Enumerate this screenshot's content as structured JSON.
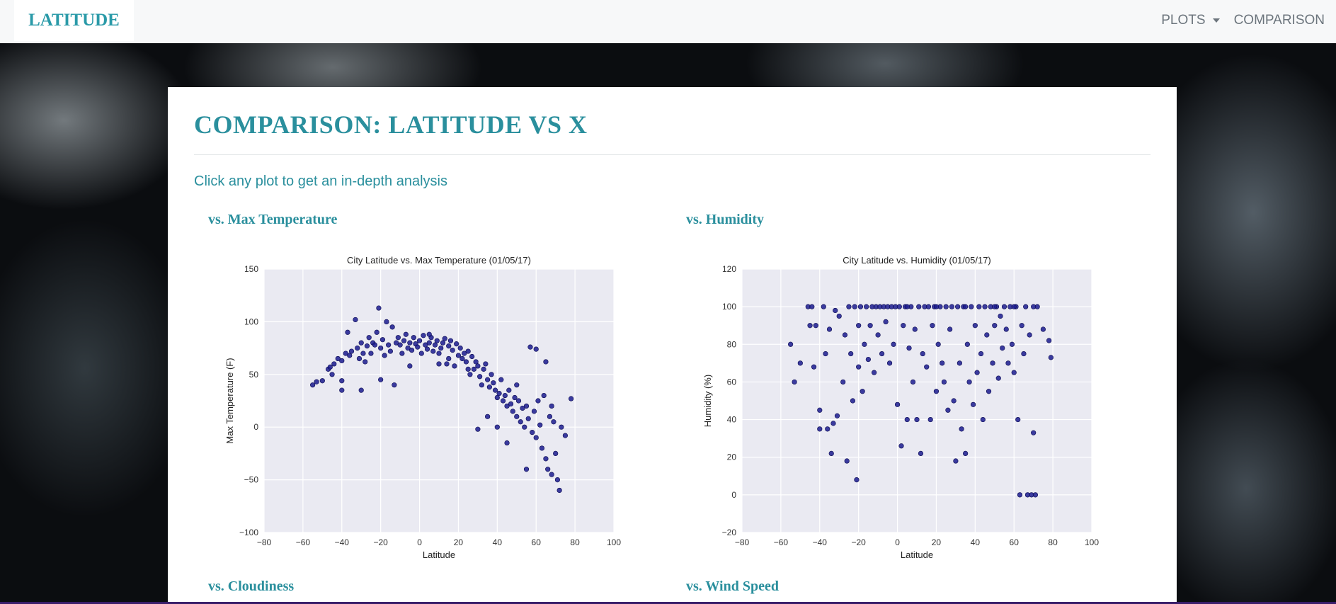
{
  "navbar": {
    "brand": "LATITUDE",
    "plots_label": "PLOTS",
    "comparison_label": "COMPARISON"
  },
  "main": {
    "title": "COMPARISON: LATITUDE VS X",
    "subtitle": "Click any plot to get an in-depth analysis"
  },
  "plots": [
    {
      "title": "vs. Max Temperature"
    },
    {
      "title": "vs. Humidity"
    },
    {
      "title": "vs. Cloudiness"
    },
    {
      "title": "vs. Wind Speed"
    }
  ],
  "colors": {
    "accent": "#2a8f9d",
    "point": "#1b1b8f",
    "plot_bg": "#eaeaf2"
  },
  "chart_data": [
    {
      "type": "scatter",
      "title": "City Latitude vs. Max Temperature (01/05/17)",
      "xlabel": "Latitude",
      "ylabel": "Max Temperature (F)",
      "xlim": [
        -80,
        100
      ],
      "ylim": [
        -100,
        150
      ],
      "xticks": [
        -80,
        -60,
        -40,
        -20,
        0,
        20,
        40,
        60,
        80,
        100
      ],
      "yticks": [
        -100,
        -50,
        0,
        50,
        100,
        150
      ],
      "grid": true,
      "points": [
        [
          -55,
          40
        ],
        [
          -53,
          43
        ],
        [
          -50,
          44
        ],
        [
          -47,
          55
        ],
        [
          -46,
          57
        ],
        [
          -45,
          50
        ],
        [
          -44,
          60
        ],
        [
          -42,
          65
        ],
        [
          -40,
          63
        ],
        [
          -40,
          44
        ],
        [
          -38,
          70
        ],
        [
          -37,
          90
        ],
        [
          -36,
          68
        ],
        [
          -35,
          72
        ],
        [
          -33,
          102
        ],
        [
          -32,
          75
        ],
        [
          -31,
          65
        ],
        [
          -30,
          80
        ],
        [
          -29,
          70
        ],
        [
          -28,
          62
        ],
        [
          -27,
          77
        ],
        [
          -26,
          85
        ],
        [
          -25,
          70
        ],
        [
          -24,
          80
        ],
        [
          -23,
          78
        ],
        [
          -22,
          90
        ],
        [
          -21,
          113
        ],
        [
          -20,
          45
        ],
        [
          -20,
          75
        ],
        [
          -19,
          83
        ],
        [
          -18,
          68
        ],
        [
          -17,
          100
        ],
        [
          -16,
          78
        ],
        [
          -15,
          72
        ],
        [
          -14,
          95
        ],
        [
          -13,
          40
        ],
        [
          -12,
          80
        ],
        [
          -11,
          85
        ],
        [
          -10,
          78
        ],
        [
          -9,
          70
        ],
        [
          -8,
          82
        ],
        [
          -7,
          88
        ],
        [
          -6,
          75
        ],
        [
          -5,
          80
        ],
        [
          -4,
          73
        ],
        [
          -3,
          85
        ],
        [
          -2,
          79
        ],
        [
          -1,
          76
        ],
        [
          0,
          82
        ],
        [
          1,
          70
        ],
        [
          2,
          87
        ],
        [
          3,
          78
        ],
        [
          4,
          74
        ],
        [
          5,
          80
        ],
        [
          6,
          85
        ],
        [
          7,
          72
        ],
        [
          8,
          78
        ],
        [
          9,
          82
        ],
        [
          10,
          70
        ],
        [
          11,
          75
        ],
        [
          12,
          80
        ],
        [
          13,
          84
        ],
        [
          14,
          60
        ],
        [
          15,
          77
        ],
        [
          16,
          82
        ],
        [
          17,
          73
        ],
        [
          18,
          58
        ],
        [
          19,
          79
        ],
        [
          20,
          68
        ],
        [
          21,
          75
        ],
        [
          22,
          65
        ],
        [
          23,
          70
        ],
        [
          24,
          62
        ],
        [
          25,
          72
        ],
        [
          26,
          50
        ],
        [
          27,
          67
        ],
        [
          28,
          55
        ],
        [
          29,
          62
        ],
        [
          30,
          58
        ],
        [
          31,
          48
        ],
        [
          32,
          40
        ],
        [
          33,
          55
        ],
        [
          34,
          60
        ],
        [
          35,
          45
        ],
        [
          36,
          38
        ],
        [
          37,
          50
        ],
        [
          38,
          42
        ],
        [
          39,
          35
        ],
        [
          40,
          28
        ],
        [
          41,
          32
        ],
        [
          42,
          45
        ],
        [
          43,
          25
        ],
        [
          44,
          30
        ],
        [
          45,
          20
        ],
        [
          46,
          35
        ],
        [
          47,
          22
        ],
        [
          48,
          15
        ],
        [
          49,
          28
        ],
        [
          50,
          10
        ],
        [
          51,
          25
        ],
        [
          52,
          5
        ],
        [
          53,
          18
        ],
        [
          54,
          0
        ],
        [
          55,
          20
        ],
        [
          56,
          8
        ],
        [
          57,
          76
        ],
        [
          58,
          -5
        ],
        [
          59,
          15
        ],
        [
          60,
          74
        ],
        [
          60,
          -10
        ],
        [
          61,
          25
        ],
        [
          62,
          2
        ],
        [
          63,
          -20
        ],
        [
          64,
          30
        ],
        [
          65,
          -30
        ],
        [
          66,
          -40
        ],
        [
          67,
          10
        ],
        [
          68,
          -45
        ],
        [
          69,
          5
        ],
        [
          70,
          -25
        ],
        [
          71,
          -50
        ],
        [
          72,
          -60
        ],
        [
          73,
          0
        ],
        [
          75,
          -8
        ],
        [
          78,
          27
        ],
        [
          30,
          -2
        ],
        [
          -40,
          35
        ],
        [
          -30,
          35
        ],
        [
          -5,
          58
        ],
        [
          10,
          60
        ],
        [
          45,
          -15
        ],
        [
          55,
          -40
        ],
        [
          65,
          62
        ],
        [
          68,
          20
        ],
        [
          50,
          40
        ],
        [
          40,
          0
        ],
        [
          35,
          10
        ],
        [
          25,
          55
        ],
        [
          15,
          65
        ],
        [
          5,
          88
        ]
      ]
    },
    {
      "type": "scatter",
      "title": "City Latitude vs. Humidity (01/05/17)",
      "xlabel": "Latitude",
      "ylabel": "Humidity (%)",
      "xlim": [
        -80,
        100
      ],
      "ylim": [
        -20,
        120
      ],
      "xticks": [
        -80,
        -60,
        -40,
        -20,
        0,
        20,
        40,
        60,
        80,
        100
      ],
      "yticks": [
        -20,
        0,
        20,
        40,
        60,
        80,
        100,
        120
      ],
      "grid": true,
      "points": [
        [
          -55,
          80
        ],
        [
          -53,
          60
        ],
        [
          -50,
          70
        ],
        [
          -46,
          100
        ],
        [
          -45,
          90
        ],
        [
          -43,
          68
        ],
        [
          -42,
          90
        ],
        [
          -40,
          35
        ],
        [
          -40,
          45
        ],
        [
          -38,
          100
        ],
        [
          -37,
          75
        ],
        [
          -36,
          35
        ],
        [
          -35,
          88
        ],
        [
          -34,
          22
        ],
        [
          -33,
          38
        ],
        [
          -32,
          98
        ],
        [
          -31,
          42
        ],
        [
          -30,
          95
        ],
        [
          -28,
          60
        ],
        [
          -27,
          85
        ],
        [
          -26,
          18
        ],
        [
          -25,
          100
        ],
        [
          -24,
          75
        ],
        [
          -23,
          50
        ],
        [
          -22,
          100
        ],
        [
          -21,
          8
        ],
        [
          -20,
          68
        ],
        [
          -19,
          100
        ],
        [
          -18,
          55
        ],
        [
          -17,
          80
        ],
        [
          -16,
          100
        ],
        [
          -15,
          72
        ],
        [
          -14,
          90
        ],
        [
          -13,
          100
        ],
        [
          -12,
          65
        ],
        [
          -11,
          100
        ],
        [
          -10,
          85
        ],
        [
          -9,
          100
        ],
        [
          -8,
          75
        ],
        [
          -7,
          100
        ],
        [
          -6,
          92
        ],
        [
          -5,
          100
        ],
        [
          -4,
          70
        ],
        [
          -3,
          100
        ],
        [
          -2,
          80
        ],
        [
          -1,
          100
        ],
        [
          0,
          48
        ],
        [
          1,
          100
        ],
        [
          2,
          26
        ],
        [
          3,
          90
        ],
        [
          4,
          100
        ],
        [
          5,
          40
        ],
        [
          6,
          78
        ],
        [
          7,
          100
        ],
        [
          8,
          60
        ],
        [
          9,
          88
        ],
        [
          10,
          40
        ],
        [
          11,
          100
        ],
        [
          12,
          22
        ],
        [
          13,
          75
        ],
        [
          14,
          100
        ],
        [
          15,
          68
        ],
        [
          16,
          100
        ],
        [
          17,
          40
        ],
        [
          18,
          90
        ],
        [
          19,
          100
        ],
        [
          20,
          55
        ],
        [
          21,
          80
        ],
        [
          22,
          100
        ],
        [
          23,
          70
        ],
        [
          24,
          60
        ],
        [
          25,
          100
        ],
        [
          26,
          45
        ],
        [
          27,
          88
        ],
        [
          28,
          100
        ],
        [
          29,
          50
        ],
        [
          30,
          18
        ],
        [
          31,
          100
        ],
        [
          32,
          70
        ],
        [
          33,
          35
        ],
        [
          34,
          100
        ],
        [
          35,
          22
        ],
        [
          36,
          80
        ],
        [
          37,
          60
        ],
        [
          38,
          100
        ],
        [
          39,
          48
        ],
        [
          40,
          90
        ],
        [
          41,
          65
        ],
        [
          42,
          100
        ],
        [
          43,
          75
        ],
        [
          44,
          40
        ],
        [
          45,
          100
        ],
        [
          46,
          85
        ],
        [
          47,
          55
        ],
        [
          48,
          100
        ],
        [
          49,
          70
        ],
        [
          50,
          90
        ],
        [
          51,
          100
        ],
        [
          52,
          62
        ],
        [
          53,
          95
        ],
        [
          54,
          78
        ],
        [
          55,
          100
        ],
        [
          56,
          88
        ],
        [
          57,
          70
        ],
        [
          58,
          100
        ],
        [
          59,
          80
        ],
        [
          60,
          65
        ],
        [
          61,
          100
        ],
        [
          62,
          40
        ],
        [
          63,
          0
        ],
        [
          64,
          90
        ],
        [
          65,
          75
        ],
        [
          66,
          100
        ],
        [
          67,
          0
        ],
        [
          68,
          85
        ],
        [
          69,
          0
        ],
        [
          70,
          33
        ],
        [
          71,
          0
        ],
        [
          72,
          100
        ],
        [
          75,
          88
        ],
        [
          78,
          82
        ],
        [
          79,
          73
        ],
        [
          -44,
          100
        ],
        [
          -20,
          90
        ],
        [
          5,
          100
        ],
        [
          20,
          100
        ],
        [
          35,
          100
        ],
        [
          50,
          100
        ],
        [
          60,
          100
        ],
        [
          70,
          100
        ]
      ]
    }
  ]
}
